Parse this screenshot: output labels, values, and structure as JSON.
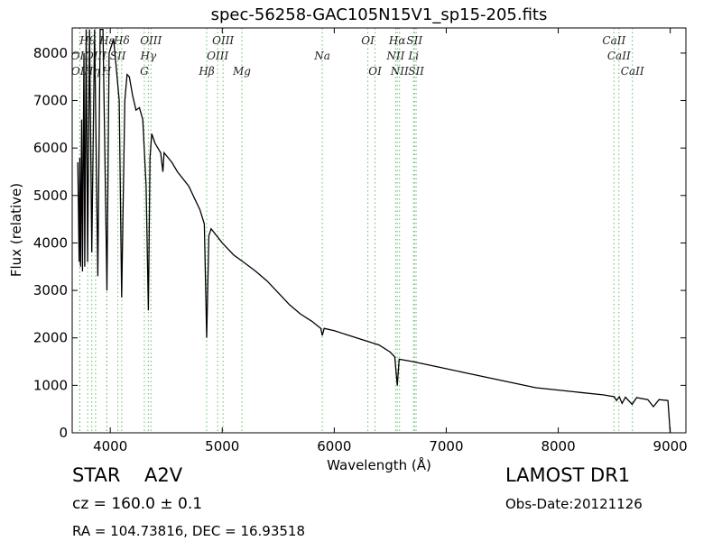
{
  "chart_data": {
    "type": "line",
    "title": "spec-56258-GAC105N15V1_sp15-205.fits",
    "x_label": "Wavelength (Å)",
    "y_label": "Flux (relative)",
    "xlim": [
      3660,
      9140
    ],
    "ylim": [
      0,
      8530
    ],
    "xticks": [
      4000,
      5000,
      6000,
      7000,
      8000,
      9000
    ],
    "yticks": [
      0,
      1000,
      2000,
      3000,
      4000,
      5000,
      6000,
      7000,
      8000
    ],
    "color": "#000000",
    "line_color": "#66bb66",
    "x": [
      3710,
      3722,
      3728,
      3735,
      3745,
      3752,
      3765,
      3772,
      3785,
      3798,
      3815,
      3835,
      3860,
      3889,
      3910,
      3935,
      3970,
      3990,
      4030,
      4080,
      4102,
      4130,
      4150,
      4170,
      4200,
      4230,
      4260,
      4290,
      4320,
      4340,
      4355,
      4370,
      4400,
      4450,
      4470,
      4480,
      4550,
      4600,
      4700,
      4800,
      4840,
      4861,
      4880,
      4900,
      5000,
      5100,
      5200,
      5300,
      5400,
      5500,
      5600,
      5700,
      5800,
      5880,
      5893,
      5910,
      6000,
      6200,
      6400,
      6500,
      6540,
      6563,
      6580,
      6700,
      6900,
      7200,
      7500,
      7800,
      8000,
      8200,
      8400,
      8500,
      8520,
      8545,
      8570,
      8600,
      8660,
      8700,
      8800,
      8850,
      8900,
      8980,
      9000
    ],
    "values": [
      5700,
      3600,
      5800,
      3500,
      6600,
      3400,
      8000,
      3500,
      8500,
      3600,
      8500,
      3800,
      8500,
      3300,
      8500,
      8500,
      3000,
      8000,
      8300,
      7000,
      2850,
      7000,
      7550,
      7500,
      7100,
      6800,
      6850,
      6600,
      5200,
      2580,
      5800,
      6300,
      6100,
      5900,
      5500,
      5900,
      5700,
      5500,
      5200,
      4700,
      4400,
      2000,
      4150,
      4300,
      4000,
      3750,
      3580,
      3400,
      3200,
      2950,
      2700,
      2500,
      2350,
      2200,
      2050,
      2200,
      2150,
      2000,
      1850,
      1700,
      1600,
      1000,
      1550,
      1500,
      1400,
      1250,
      1100,
      950,
      900,
      850,
      800,
      760,
      680,
      760,
      620,
      750,
      600,
      740,
      700,
      550,
      700,
      680,
      0
    ],
    "spectral_lines": [
      [
        {
          "label": "Hθ",
          "x": 3798
        },
        {
          "label": "Hε",
          "x": 3970
        },
        {
          "label": "Hδ",
          "x": 4102
        },
        {
          "label": "OIII",
          "x": 4363
        },
        {
          "label": "OIII",
          "x": 5007
        },
        {
          "label": "OI",
          "x": 6300
        },
        {
          "label": "Hα",
          "x": 6563
        },
        {
          "label": "SII",
          "x": 6716
        },
        {
          "label": "CaII",
          "x": 8498
        }
      ],
      [
        {
          "label": "OII",
          "x": 3727
        },
        {
          "label": "OIII",
          "x": 3869
        },
        {
          "label": "SII",
          "x": 4068
        },
        {
          "label": "Hγ",
          "x": 4340
        },
        {
          "label": "OIII",
          "x": 4959
        },
        {
          "label": "Na",
          "x": 5893
        },
        {
          "label": "NII",
          "x": 6548
        },
        {
          "label": "Li",
          "x": 6708
        },
        {
          "label": "CaII",
          "x": 8542
        }
      ],
      [
        {
          "label": "OII",
          "x": 3729
        },
        {
          "label": "Hη",
          "x": 3835
        },
        {
          "label": "H",
          "x": 3968
        },
        {
          "label": "G",
          "x": 4304
        },
        {
          "label": "Hβ",
          "x": 4861
        },
        {
          "label": "Mg",
          "x": 5175
        },
        {
          "label": "OI",
          "x": 6364
        },
        {
          "label": "NII",
          "x": 6583
        },
        {
          "label": "SII",
          "x": 6731
        },
        {
          "label": "CaII",
          "x": 8662
        }
      ]
    ]
  },
  "footer": {
    "object_class": "STAR",
    "subclass": "A2V",
    "survey": "LAMOST DR1",
    "redshift": "cz = 160.0 ± 0.1",
    "obs_date": "Obs-Date:20121126",
    "coords": "RA = 104.73816, DEC = 16.93518"
  }
}
